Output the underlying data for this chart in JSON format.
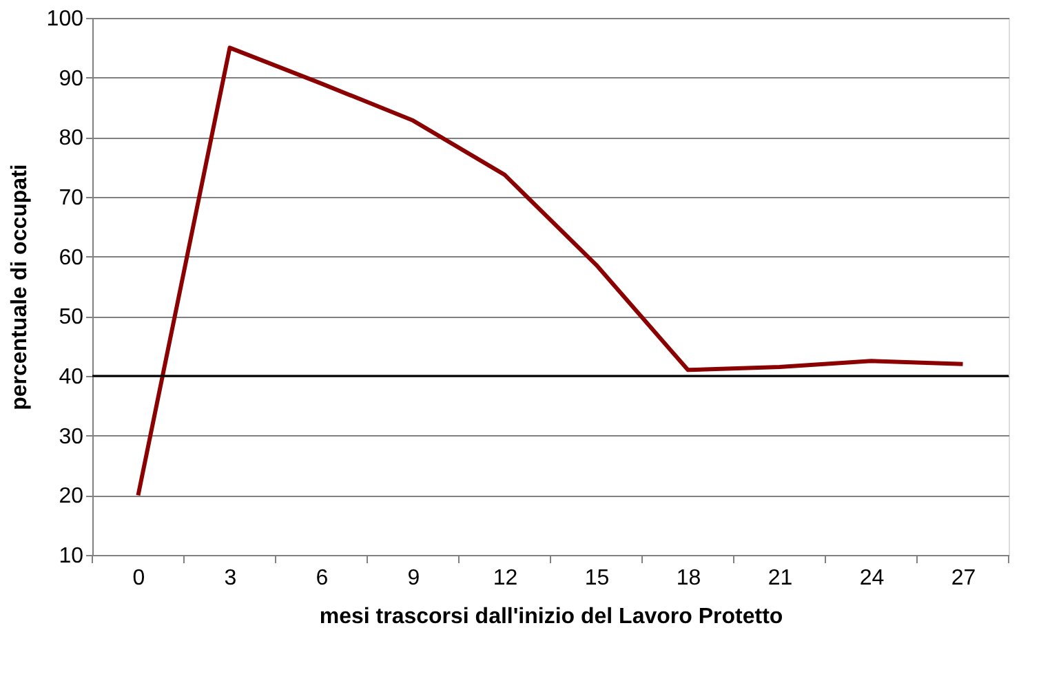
{
  "chart_data": {
    "type": "line",
    "xlabel": "mesi trascorsi dall'inizio del Lavoro Protetto",
    "ylabel": "percentuale di occupati",
    "categories": [
      "0",
      "3",
      "6",
      "9",
      "12",
      "15",
      "18",
      "21",
      "24",
      "27"
    ],
    "series": [
      {
        "color": "#8b0000",
        "values": [
          20,
          95,
          89,
          82.8,
          73.7,
          58.6,
          41,
          41.5,
          42.5,
          42
        ]
      }
    ],
    "ylim": [
      10,
      100
    ],
    "yticks": [
      10,
      20,
      30,
      40,
      50,
      60,
      70,
      80,
      90,
      100
    ],
    "grid": "y",
    "marker": "none",
    "line_style": "solid",
    "ref_lines": [
      {
        "axis": "y",
        "value": 40,
        "color": "#000000"
      }
    ]
  }
}
